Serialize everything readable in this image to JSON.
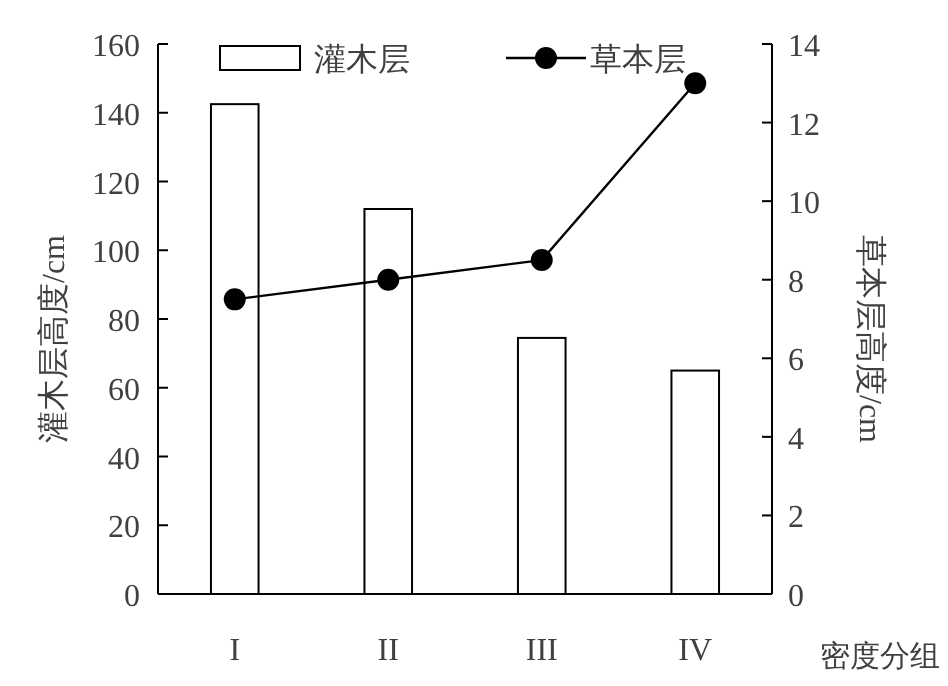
{
  "chart_data": {
    "type": "bar",
    "categories": [
      "I",
      "II",
      "III",
      "IV"
    ],
    "xlabel": "密度分组",
    "ylabel": "灌木层高度/cm",
    "y2label": "草本层高度/cm",
    "ylim": [
      0,
      160
    ],
    "yticks": [
      0,
      20,
      40,
      60,
      80,
      100,
      120,
      140,
      160
    ],
    "y2lim": [
      0,
      14
    ],
    "y2ticks": [
      0,
      2,
      4,
      6,
      8,
      10,
      12,
      14
    ],
    "legend": "top",
    "series": [
      {
        "name": "灌木层",
        "color": "#ffffff",
        "values": [
          142.5,
          112,
          74.5,
          65
        ]
      },
      {
        "name": "草本层",
        "type": "line",
        "axis": "y2",
        "marker": "circle",
        "color": "#000000",
        "values": [
          7.5,
          8,
          8.5,
          13
        ]
      }
    ]
  }
}
